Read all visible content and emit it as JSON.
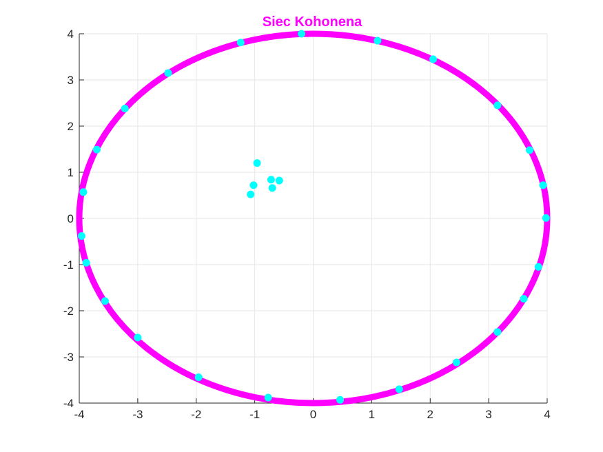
{
  "chart_data": {
    "type": "scatter",
    "title": "Siec Kohonena",
    "xlabel": "",
    "ylabel": "",
    "xlim": [
      -4,
      4
    ],
    "ylim": [
      -4,
      4
    ],
    "grid": true,
    "x_ticks": [
      -4,
      -3,
      -2,
      -1,
      0,
      1,
      2,
      3,
      4
    ],
    "y_ticks": [
      -4,
      -3,
      -2,
      -1,
      0,
      1,
      2,
      3,
      4
    ],
    "x_tick_labels": [
      "-4",
      "-3",
      "-2",
      "-1",
      "0",
      "1",
      "2",
      "3",
      "4"
    ],
    "y_tick_labels": [
      "-4",
      "-3",
      "-2",
      "-1",
      "0",
      "1",
      "2",
      "3",
      "4"
    ],
    "colors": {
      "title": "#ff00ff",
      "ring": "#ff00ff",
      "neurons": "#00ffff",
      "grid": "#e6e6e6",
      "axis": "#262626"
    },
    "series": [
      {
        "type": "ring",
        "radius": 4,
        "center": [
          0,
          0
        ]
      },
      {
        "type": "scatter",
        "x": [
          -0.2,
          1.1,
          2.05,
          3.15,
          3.7,
          3.93,
          3.98,
          3.85,
          3.6,
          3.15,
          2.45,
          1.47,
          0.46,
          -0.77,
          -1.96,
          -3.0,
          -3.56,
          -3.88,
          -3.96,
          -3.93,
          -3.7,
          -3.22,
          -2.48,
          -1.24,
          -0.96,
          -1.02,
          -0.72,
          -0.58,
          -0.7,
          -1.07
        ],
        "y": [
          4.0,
          3.85,
          3.45,
          2.45,
          1.48,
          0.72,
          0.01,
          -1.05,
          -1.74,
          -2.46,
          -3.12,
          -3.7,
          -3.93,
          -3.88,
          -3.44,
          -2.58,
          -1.79,
          -0.96,
          -0.38,
          0.57,
          1.49,
          2.38,
          3.15,
          3.81,
          1.2,
          0.72,
          0.84,
          0.82,
          0.66,
          0.52
        ]
      }
    ]
  }
}
